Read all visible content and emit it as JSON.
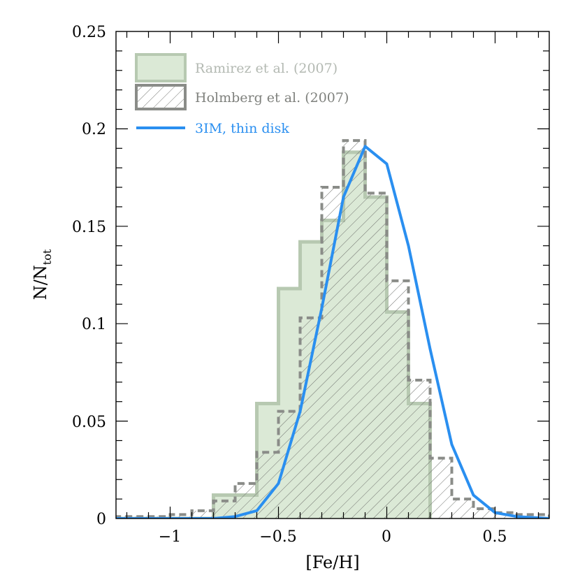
{
  "chart_data": {
    "type": "histogram",
    "xlabel": "[Fe/H]",
    "ylabel": "N/N",
    "ylabel_sub": "tot",
    "xlim": [
      -1.25,
      0.75
    ],
    "ylim": [
      0,
      0.25
    ],
    "x_tick_labels": [
      "−1",
      "−0.5",
      "0",
      "0.5"
    ],
    "y_tick_labels": [
      "0",
      "0.05",
      "0.1",
      "0.15",
      "0.2",
      "0.25"
    ],
    "grid": false,
    "legend_placement": "top-left",
    "series": [
      {
        "name": "Ramirez et al. (2007)",
        "style": "filled-steps",
        "fill_color": "#dbe9d6",
        "edge_color": "#b7c9b1",
        "bins": [
          -1.3,
          -0.8,
          -0.7,
          -0.6,
          -0.5,
          -0.4,
          -0.3,
          -0.2,
          -0.1,
          0.0,
          0.1,
          0.2
        ],
        "values": [
          0.0,
          0.012,
          0.012,
          0.059,
          0.118,
          0.142,
          0.153,
          0.188,
          0.165,
          0.106,
          0.059,
          0.0
        ]
      },
      {
        "name": "Holmberg et al. (2007)",
        "style": "hatched-dashed-steps",
        "edge_color": "#8a8c88",
        "bins": [
          -1.25,
          -1.1,
          -1.0,
          -0.9,
          -0.8,
          -0.7,
          -0.6,
          -0.5,
          -0.4,
          -0.3,
          -0.2,
          -0.1,
          0.0,
          0.1,
          0.2,
          0.3,
          0.4,
          0.5,
          0.6,
          0.75
        ],
        "values": [
          0.001,
          0.001,
          0.002,
          0.004,
          0.009,
          0.018,
          0.034,
          0.055,
          0.103,
          0.17,
          0.194,
          0.167,
          0.122,
          0.071,
          0.031,
          0.01,
          0.005,
          0.003,
          0.002
        ]
      },
      {
        "name": "3IM, thin disk",
        "style": "line",
        "color": "#2a8ff0",
        "x": [
          -1.25,
          -1.0,
          -0.8,
          -0.7,
          -0.6,
          -0.5,
          -0.4,
          -0.3,
          -0.2,
          -0.1,
          0.0,
          0.1,
          0.2,
          0.3,
          0.4,
          0.5,
          0.6,
          0.75
        ],
        "y": [
          0.0,
          0.0,
          0.0,
          0.001,
          0.004,
          0.018,
          0.055,
          0.108,
          0.165,
          0.191,
          0.182,
          0.14,
          0.087,
          0.038,
          0.012,
          0.003,
          0.001,
          0.0
        ]
      }
    ]
  }
}
